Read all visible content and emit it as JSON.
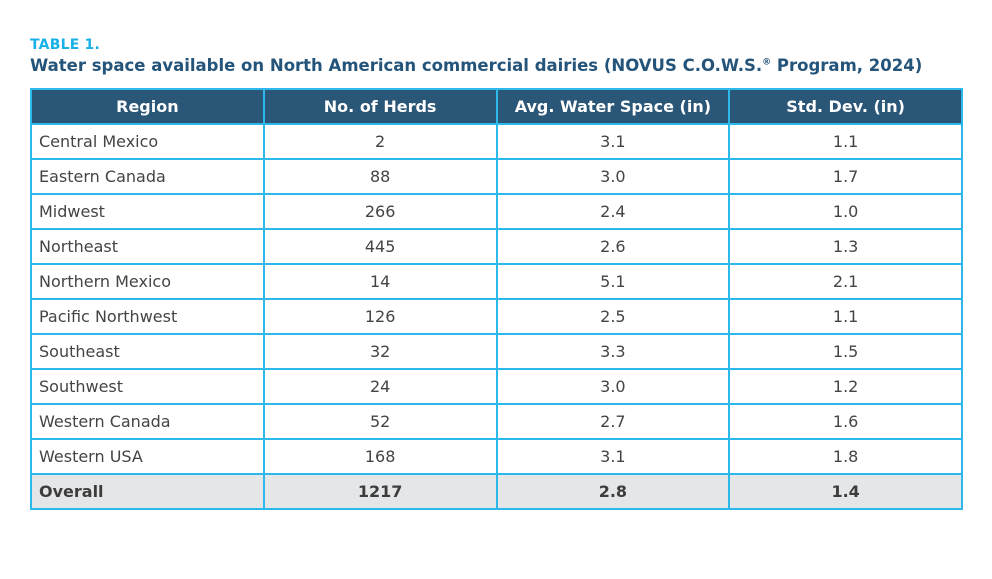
{
  "table_label": "TABLE 1.",
  "title": "Water space available on North American commercial dairies (NOVUS C.O.W.S.",
  "title_reg": "®",
  "title_suffix": " Program, 2024)",
  "colors": {
    "label": "#1ab2e6",
    "title": "#24547a",
    "header_bg": "#2a5677",
    "border": "#2cb8ea",
    "overall_bg": "#e5e6e8"
  },
  "headers": [
    "Region",
    "No. of Herds",
    "Avg. Water Space (in)",
    "Std. Dev. (in)"
  ],
  "rows": [
    [
      "Central Mexico",
      "2",
      "3.1",
      "1.1"
    ],
    [
      "Eastern Canada",
      "88",
      "3.0",
      "1.7"
    ],
    [
      "Midwest",
      "266",
      "2.4",
      "1.0"
    ],
    [
      "Northeast",
      "445",
      "2.6",
      "1.3"
    ],
    [
      "Northern Mexico",
      "14",
      "5.1",
      "2.1"
    ],
    [
      "Pacific Northwest",
      "126",
      "2.5",
      "1.1"
    ],
    [
      "Southeast",
      "32",
      "3.3",
      "1.5"
    ],
    [
      "Southwest",
      "24",
      "3.0",
      "1.2"
    ],
    [
      "Western Canada",
      "52",
      "2.7",
      "1.6"
    ],
    [
      "Western USA",
      "168",
      "3.1",
      "1.8"
    ]
  ],
  "overall": [
    "Overall",
    "1217",
    "2.8",
    "1.4"
  ]
}
